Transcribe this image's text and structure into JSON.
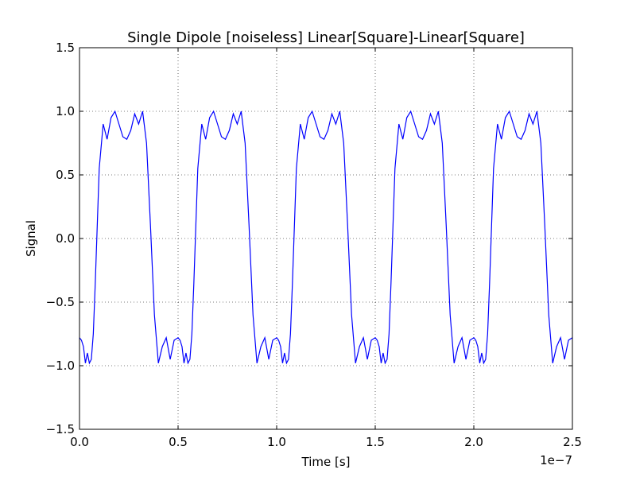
{
  "chart_data": {
    "type": "line",
    "title": "Single Dipole [noiseless] Linear[Square]-Linear[Square]",
    "xlabel": "Time [s]",
    "ylabel": "Signal",
    "x_offset_label": "1e−7",
    "xlim": [
      0.0,
      2.5e-07
    ],
    "ylim": [
      -1.5,
      1.5
    ],
    "grid": true,
    "grid_style": "dotted",
    "line_color": "#0000ff",
    "x_ticks": [
      0.0,
      5e-08,
      1e-07,
      1.5e-07,
      2e-07,
      2.5e-07
    ],
    "x_tick_labels": [
      "0.0",
      "0.5",
      "1.0",
      "1.5",
      "2.0",
      "2.5"
    ],
    "y_ticks": [
      -1.5,
      -1.0,
      -0.5,
      0.0,
      0.5,
      1.0,
      1.5
    ],
    "y_tick_labels": [
      "−1.5",
      "−1.0",
      "−0.5",
      "0.0",
      "0.5",
      "1.0",
      "1.5"
    ],
    "series": [
      {
        "period": 5e-08,
        "x": [
          0,
          1e-09,
          2e-09,
          3e-09,
          4e-09,
          5e-09,
          6e-09,
          7e-09,
          8e-09,
          9e-09,
          1e-08,
          1.2e-08,
          1.4e-08,
          1.6e-08,
          1.8e-08,
          2e-08,
          2.2e-08,
          2.4e-08,
          2.6e-08,
          2.8e-08,
          3e-08,
          3.2e-08,
          3.4e-08,
          3.6e-08,
          3.8e-08,
          4e-08,
          4.2e-08,
          4.4e-08,
          4.6e-08,
          4.8e-08,
          5e-08
        ],
        "y": [
          -0.78,
          -0.8,
          -0.85,
          -0.98,
          -0.9,
          -0.98,
          -0.95,
          -0.75,
          -0.35,
          0.1,
          0.55,
          0.9,
          0.78,
          0.95,
          1.0,
          0.9,
          0.8,
          0.78,
          0.85,
          0.98,
          0.9,
          1.0,
          0.75,
          0.1,
          -0.6,
          -0.98,
          -0.85,
          -0.78,
          -0.95,
          -0.8,
          -0.78
        ]
      }
    ]
  }
}
